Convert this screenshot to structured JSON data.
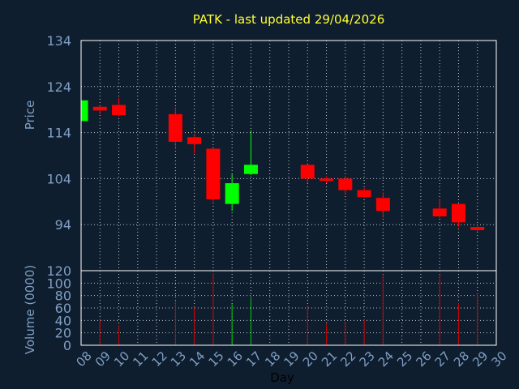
{
  "colors": {
    "background": "#0f1e2e",
    "frame": "#ffffff",
    "grid": "#ffffff",
    "title": "#ffff33",
    "axis_text": "#7f9fc4",
    "up": "#00ff00",
    "down": "#ff0000",
    "volume_up": "#00cc00",
    "volume_down": "#cc0000"
  },
  "chart_data": [
    {
      "type": "candlestick",
      "title": "PATK - last updated 29/04/2026",
      "ylabel": "Price",
      "ylim": [
        84,
        134
      ],
      "yticks": [
        94,
        104,
        114,
        124,
        134
      ],
      "grid": true,
      "x_ticks": [
        "08",
        "09",
        "10",
        "11",
        "12",
        "13",
        "14",
        "15",
        "16",
        "17",
        "18",
        "19",
        "20",
        "21",
        "22",
        "23",
        "24",
        "25",
        "26",
        "27",
        "28",
        "29",
        "30"
      ],
      "candles": [
        {
          "day": "08",
          "open": 116.5,
          "close": 121.0,
          "high": 121.0,
          "low": 116.5
        },
        {
          "day": "09",
          "open": 119.6,
          "close": 118.8,
          "high": 119.8,
          "low": 118.0
        },
        {
          "day": "10",
          "open": 120.0,
          "close": 117.8,
          "high": 121.5,
          "low": 117.5
        },
        {
          "day": "13",
          "open": 118.0,
          "close": 112.0,
          "high": 119.5,
          "low": 111.0
        },
        {
          "day": "14",
          "open": 113.0,
          "close": 111.5,
          "high": 113.5,
          "low": 109.5
        },
        {
          "day": "15",
          "open": 110.5,
          "close": 99.5,
          "high": 110.5,
          "low": 99.0
        },
        {
          "day": "16",
          "open": 98.5,
          "close": 103.0,
          "high": 105.0,
          "low": 97.0
        },
        {
          "day": "17",
          "open": 105.0,
          "close": 107.0,
          "high": 114.5,
          "low": 104.8
        },
        {
          "day": "20",
          "open": 107.0,
          "close": 104.0,
          "high": 107.0,
          "low": 103.0
        },
        {
          "day": "21",
          "open": 104.0,
          "close": 103.5,
          "high": 104.5,
          "low": 103.0
        },
        {
          "day": "22",
          "open": 104.0,
          "close": 101.5,
          "high": 104.5,
          "low": 100.5
        },
        {
          "day": "23",
          "open": 101.5,
          "close": 100.0,
          "high": 102.0,
          "low": 99.8
        },
        {
          "day": "24",
          "open": 99.8,
          "close": 97.0,
          "high": 101.0,
          "low": 95.5
        },
        {
          "day": "27",
          "open": 97.5,
          "close": 95.8,
          "high": 99.5,
          "low": 95.5
        },
        {
          "day": "28",
          "open": 98.5,
          "close": 94.5,
          "high": 98.5,
          "low": 93.5
        },
        {
          "day": "29",
          "open": 93.5,
          "close": 92.8,
          "high": 94.0,
          "low": 92.5
        }
      ]
    },
    {
      "type": "bar",
      "ylabel": "Volume (0000)",
      "xlabel": "Day",
      "ylim": [
        0,
        120
      ],
      "yticks": [
        0,
        20,
        40,
        60,
        80,
        100,
        120
      ],
      "grid": true,
      "volumes": [
        {
          "day": "08",
          "value": 0,
          "up": true
        },
        {
          "day": "09",
          "value": 42,
          "up": false
        },
        {
          "day": "10",
          "value": 32,
          "up": false
        },
        {
          "day": "13",
          "value": 72,
          "up": false
        },
        {
          "day": "14",
          "value": 62,
          "up": false
        },
        {
          "day": "15",
          "value": 116,
          "up": false
        },
        {
          "day": "16",
          "value": 66,
          "up": true
        },
        {
          "day": "17",
          "value": 76,
          "up": true
        },
        {
          "day": "20",
          "value": 64,
          "up": false
        },
        {
          "day": "21",
          "value": 34,
          "up": false
        },
        {
          "day": "22",
          "value": 36,
          "up": false
        },
        {
          "day": "23",
          "value": 42,
          "up": false
        },
        {
          "day": "24",
          "value": 114,
          "up": false
        },
        {
          "day": "27",
          "value": 114,
          "up": false
        },
        {
          "day": "28",
          "value": 68,
          "up": false
        },
        {
          "day": "29",
          "value": 84,
          "up": false
        }
      ]
    }
  ]
}
